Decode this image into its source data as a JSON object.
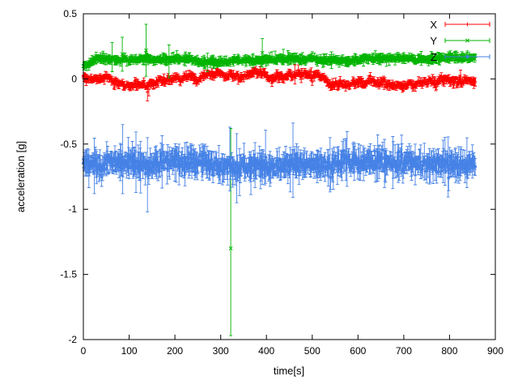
{
  "axes": {
    "xlabel": "time[s]",
    "ylabel": "acceleration [g]",
    "xlim": [
      0,
      900
    ],
    "ylim": [
      -2,
      0.5
    ],
    "x_ticks": [
      0,
      100,
      200,
      300,
      400,
      500,
      600,
      700,
      800,
      900
    ],
    "y_ticks": [
      0.5,
      0,
      -0.5,
      -1,
      -1.5,
      -2
    ],
    "y_tick_labels": [
      "0.5",
      "0",
      "-0.5",
      "-1",
      "-1.5",
      "-2"
    ],
    "grid": false,
    "legend_position": "top-right-inside"
  },
  "legend": {
    "items": [
      {
        "label": "X",
        "color": "#ff0000",
        "marker": "plus"
      },
      {
        "label": "Y",
        "color": "#00b400",
        "marker": "cross"
      },
      {
        "label": "Z",
        "color": "#4682e6",
        "marker": "star"
      }
    ]
  },
  "chart_data": {
    "type": "scatter",
    "style": "points-with-errorbars",
    "title": "",
    "xlabel": "time[s]",
    "ylabel": "acceleration [g]",
    "xlim": [
      0,
      900
    ],
    "ylim": [
      -2,
      0.5
    ],
    "x_data_range": [
      0,
      856
    ],
    "sample_step_s": 1,
    "series": [
      {
        "name": "X",
        "color": "#ff0000",
        "marker": "plus",
        "seed": 101,
        "base": 0.0,
        "start": 0.03,
        "ramp_s": 20,
        "wander_step": 0.018,
        "wander_decay": 0.985,
        "wander_max": 0.055,
        "noise": 0.012,
        "err": 0.018,
        "err_var": 0.008,
        "err_spike_prob": 0.008,
        "err_spike_mag": 0.05,
        "anomalies": [
          {
            "t": 140,
            "y": -0.1,
            "err": 0.07
          },
          {
            "t": 143,
            "y": -0.08,
            "err": 0.05
          }
        ]
      },
      {
        "name": "Y",
        "color": "#00b400",
        "marker": "cross",
        "seed": 202,
        "base": 0.155,
        "start": 0.1,
        "ramp_s": 30,
        "wander_step": 0.0072,
        "wander_decay": 0.985,
        "wander_max": 0.03,
        "noise": 0.009,
        "err": 0.02,
        "err_var": 0.012,
        "err_spike_prob": 0.01,
        "err_spike_mag": 0.1,
        "anomalies": [
          {
            "t": 85,
            "y": 0.19,
            "err": 0.13
          },
          {
            "t": 137,
            "y": 0.22,
            "err": 0.2
          },
          {
            "t": 322,
            "y": -1.3,
            "err_top": -0.38,
            "err_bot": -1.97
          },
          {
            "t": 391,
            "y": 0.2,
            "err": 0.11
          }
        ]
      },
      {
        "name": "Z",
        "color": "#4682e6",
        "marker": "star",
        "seed": 303,
        "base": -0.655,
        "start": -0.64,
        "ramp_s": 10,
        "wander_step": 0.009,
        "wander_decay": 0.985,
        "wander_max": 0.03,
        "noise": 0.03,
        "err": 0.06,
        "err_var": 0.035,
        "err_spike_prob": 0.03,
        "err_spike_mag": 0.18,
        "anomalies": [
          {
            "t": 86,
            "y": -0.6,
            "err_top": -0.35,
            "err_bot": -0.88
          },
          {
            "t": 140,
            "y": -0.72,
            "err_top": -0.45,
            "err_bot": -1.02
          },
          {
            "t": 320,
            "y": -0.6,
            "err_top": -0.37,
            "err_bot": -0.86
          },
          {
            "t": 335,
            "y": -0.66,
            "err_top": -0.42,
            "err_bot": -0.95
          },
          {
            "t": 820,
            "y": -0.66,
            "err_top": -0.52,
            "err_bot": -0.8
          }
        ]
      }
    ]
  }
}
